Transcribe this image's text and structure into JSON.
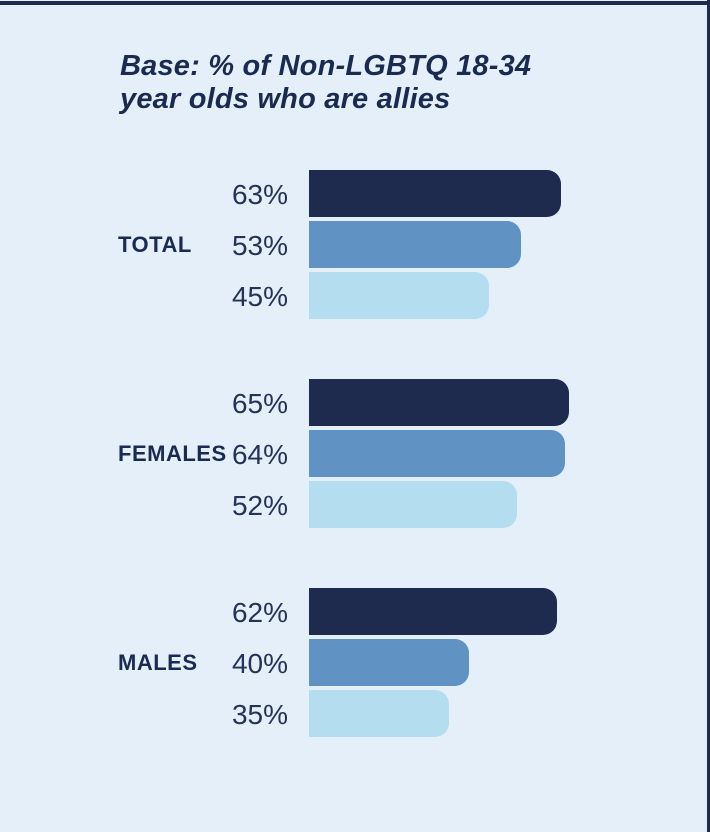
{
  "page": {
    "background": "#e4effa",
    "top_border_color": "#1f2a4f",
    "right_border_color": "#1f2a4f",
    "text_color": "#1b2a50"
  },
  "title": {
    "line1": "Base: % of Non-LGBTQ 18-34",
    "line2": "year olds who are allies"
  },
  "chart_data": {
    "type": "bar",
    "orientation": "horizontal",
    "title": "Base: % of Non-LGBTQ 18-34 year olds who are allies",
    "unit": "%",
    "xlim": [
      0,
      65
    ],
    "grid": false,
    "legend": "none",
    "series_colors": [
      "#1f2a4f",
      "#6093c3",
      "#b4def0"
    ],
    "value_label_color": "#263257",
    "groups": [
      {
        "label": "TOTAL",
        "bars": [
          {
            "value": 63,
            "display": "63%"
          },
          {
            "value": 53,
            "display": "53%"
          },
          {
            "value": 45,
            "display": "45%"
          }
        ]
      },
      {
        "label": "FEMALES",
        "bars": [
          {
            "value": 65,
            "display": "65%"
          },
          {
            "value": 64,
            "display": "64%"
          },
          {
            "value": 52,
            "display": "52%"
          }
        ]
      },
      {
        "label": "MALES",
        "bars": [
          {
            "value": 62,
            "display": "62%"
          },
          {
            "value": 40,
            "display": "40%"
          },
          {
            "value": 35,
            "display": "35%"
          }
        ]
      }
    ]
  }
}
